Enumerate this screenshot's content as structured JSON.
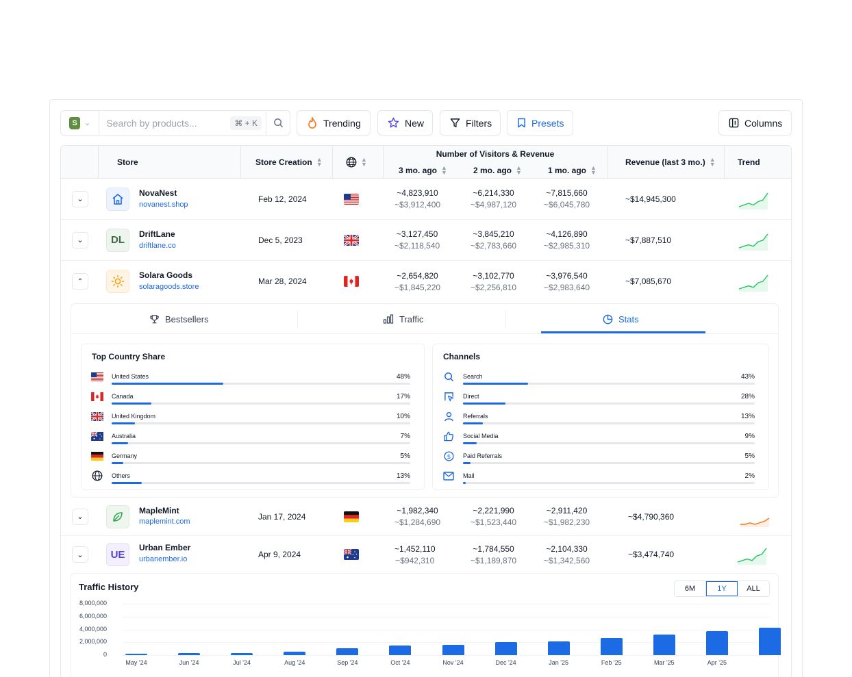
{
  "toolbar": {
    "search_placeholder": "Search by products...",
    "shortcut": "⌘ + K",
    "buttons": {
      "trending": "Trending",
      "new": "New",
      "filters": "Filters",
      "presets": "Presets",
      "columns": "Columns"
    }
  },
  "table": {
    "headers": {
      "store": "Store",
      "creation": "Store Creation",
      "visitors_group": "Number of Visitors & Revenue",
      "m3": "3 mo. ago",
      "m2": "2 mo. ago",
      "m1": "1 mo. ago",
      "revenue": "Revenue (last 3 mo.)",
      "trend": "Trend"
    },
    "rows": [
      {
        "name": "NovaNest",
        "domain": "novanest.shop",
        "logo": "house-icon",
        "created": "Feb 12, 2024",
        "country": "US",
        "m3_v": "~4,823,910",
        "m3_r": "~$3,912,400",
        "m2_v": "~6,214,330",
        "m2_r": "~$4,987,120",
        "m1_v": "~7,815,660",
        "m1_r": "~$6,045,780",
        "revenue": "~$14,945,300",
        "trend": [
          2,
          3,
          4,
          3,
          5,
          6,
          10
        ]
      },
      {
        "name": "DriftLane",
        "domain": "driftlane.co",
        "logo_text": "DL",
        "created": "Dec 5, 2023",
        "country": "GB",
        "m3_v": "~3,127,450",
        "m3_r": "~$2,118,540",
        "m2_v": "~3,845,210",
        "m2_r": "~$2,783,660",
        "m1_v": "~4,126,890",
        "m1_r": "~$2,985,310",
        "revenue": "~$7,887,510",
        "trend": [
          2,
          3,
          4,
          3,
          6,
          7,
          11
        ]
      },
      {
        "name": "Solara Goods",
        "domain": "solaragoods.store",
        "logo": "sun-icon",
        "created": "Mar 28, 2024",
        "country": "CA",
        "m3_v": "~2,654,820",
        "m3_r": "~$1,845,220",
        "m2_v": "~3,102,770",
        "m2_r": "~$2,256,810",
        "m1_v": "~3,976,540",
        "m1_r": "~$2,983,640",
        "revenue": "~$7,085,670",
        "trend": [
          2,
          3,
          4,
          3,
          6,
          7,
          11
        ]
      },
      {
        "name": "MapleMint",
        "domain": "maplemint.com",
        "logo": "leaf-icon",
        "created": "Jan 17, 2024",
        "country": "DE",
        "m3_v": "~1,982,340",
        "m3_r": "~$1,284,690",
        "m2_v": "~2,221,990",
        "m2_r": "~$1,523,440",
        "m1_v": "~2,911,420",
        "m1_r": "~$1,982,230",
        "revenue": "~$4,790,360",
        "trend": [
          3,
          3,
          4,
          3,
          4,
          5,
          7
        ]
      },
      {
        "name": "Urban Ember",
        "domain": "urbanember.io",
        "logo_text": "UE",
        "created": "Apr 9, 2024",
        "country": "AU",
        "m3_v": "~1,452,110",
        "m3_r": "~$942,310",
        "m2_v": "~1,784,550",
        "m2_r": "~$1,189,870",
        "m1_v": "~2,104,330",
        "m1_r": "~$1,342,560",
        "revenue": "~$3,474,740",
        "trend": [
          2,
          3,
          4,
          3,
          6,
          7,
          11
        ]
      }
    ]
  },
  "panel": {
    "tabs": [
      "Bestsellers",
      "Traffic",
      "Stats"
    ],
    "active_tab": "Stats",
    "country_share": {
      "title": "Top Country Share",
      "items": [
        {
          "label": "United States",
          "pct": "48%",
          "value": 48,
          "icon": "flag-us-icon"
        },
        {
          "label": "Canada",
          "pct": "17%",
          "value": 17,
          "icon": "flag-ca-icon"
        },
        {
          "label": "United Kingdom",
          "pct": "10%",
          "value": 10,
          "icon": "flag-gb-icon"
        },
        {
          "label": "Australia",
          "pct": "7%",
          "value": 7,
          "icon": "flag-au-icon"
        },
        {
          "label": "Germany",
          "pct": "5%",
          "value": 5,
          "icon": "flag-de-icon"
        },
        {
          "label": "Others",
          "pct": "13%",
          "value": 13,
          "icon": "globe-icon"
        }
      ]
    },
    "channels": {
      "title": "Channels",
      "items": [
        {
          "label": "Search",
          "pct": "43%",
          "value": 43,
          "icon": "search-icon"
        },
        {
          "label": "Direct",
          "pct": "28%",
          "value": 28,
          "icon": "cursor-icon"
        },
        {
          "label": "Referrals",
          "pct": "13%",
          "value": 13,
          "icon": "user-icon"
        },
        {
          "label": "Social Media",
          "pct": "9%",
          "value": 9,
          "icon": "thumbs-up-icon"
        },
        {
          "label": "Paid Referrals",
          "pct": "5%",
          "value": 5,
          "icon": "dollar-icon"
        },
        {
          "label": "Mail",
          "pct": "2%",
          "value": 2,
          "icon": "mail-icon"
        }
      ]
    }
  },
  "history": {
    "title": "Traffic History",
    "ranges": [
      "6M",
      "1Y",
      "ALL"
    ],
    "active_range": "1Y"
  },
  "chart_data": {
    "type": "bar",
    "title": "Traffic History",
    "categories": [
      "May '24",
      "Jun '24",
      "Jul '24",
      "Aug '24",
      "Sep '24",
      "Oct '24",
      "Nov '24",
      "Dec '24",
      "Jan '25",
      "Feb '25",
      "Mar '25",
      "Apr '25",
      ""
    ],
    "values": [
      250000,
      300000,
      350000,
      550000,
      1050000,
      1500000,
      1650000,
      2000000,
      2150000,
      2650000,
      3150000,
      3750000,
      4300000
    ],
    "yticks": [
      "8,000,000",
      "6,000,000",
      "4,000,000",
      "2,000,000",
      "0"
    ],
    "ylim": [
      0,
      8000000
    ],
    "grid": true,
    "colors": {
      "bar": "#1d6ae5"
    }
  },
  "colors": {
    "accent": "#1d6ae5",
    "trend_up": "#22c55e",
    "trend_flat": "#f97316"
  }
}
